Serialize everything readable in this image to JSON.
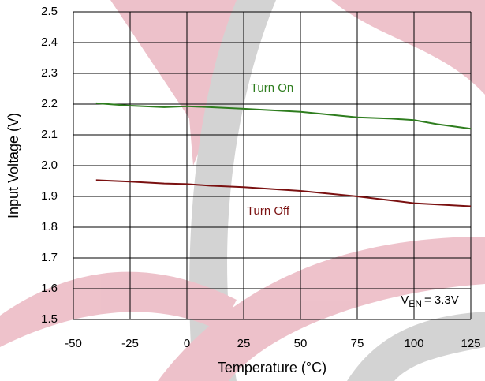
{
  "chart_data": {
    "type": "line",
    "x_label": "Temperature (°C)",
    "y_label": "Input Voltage (V)",
    "xlim": [
      -50,
      125
    ],
    "xticks": [
      -50,
      -25,
      0,
      25,
      50,
      75,
      100,
      125
    ],
    "ylim": [
      1.5,
      2.5
    ],
    "yticks": [
      1.5,
      1.6,
      1.7,
      1.8,
      1.9,
      {
        "value": 2,
        "label": "2.0"
      },
      2.1,
      2.2,
      2.3,
      2.4,
      2.5
    ],
    "grid": true,
    "annotation": {
      "main": "V",
      "sub": "EN",
      "rest": "= 3.3V"
    },
    "series": [
      {
        "name": "Turn On",
        "color": "#2e7d1e",
        "x": [
          -40,
          -25,
          -10,
          0,
          10,
          25,
          50,
          75,
          90,
          100,
          110,
          125
        ],
        "values": [
          2.203,
          2.195,
          2.19,
          2.193,
          2.19,
          2.185,
          2.175,
          2.157,
          2.153,
          2.148,
          2.135,
          2.12
        ]
      },
      {
        "name": "Turn Off",
        "color": "#7a1010",
        "x": [
          -40,
          -25,
          -10,
          0,
          10,
          25,
          50,
          75,
          100,
          125
        ],
        "values": [
          1.953,
          1.948,
          1.942,
          1.94,
          1.935,
          1.93,
          1.918,
          1.9,
          1.878,
          1.868
        ]
      }
    ]
  }
}
